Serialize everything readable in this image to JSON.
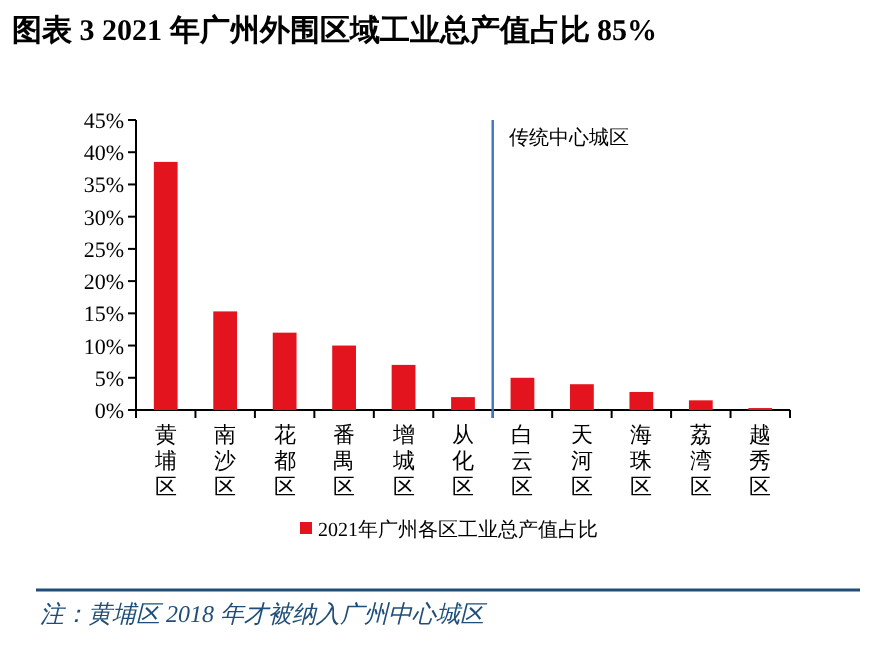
{
  "chart_data": {
    "type": "bar",
    "title": "图表 3 2021 年广州外围区域工业总产值占比 85%",
    "categories": [
      "黄埔区",
      "南沙区",
      "花都区",
      "番禺区",
      "增城区",
      "从化区",
      "白云区",
      "天河区",
      "海珠区",
      "荔湾区",
      "越秀区"
    ],
    "series": [
      {
        "name": "2021年广州各区工业总产值占比",
        "color": "#e3141e",
        "values": [
          38.5,
          15.3,
          12,
          10,
          7,
          2,
          5,
          4,
          2.8,
          1.5,
          0.3
        ]
      }
    ],
    "ylim": [
      0,
      45
    ],
    "yticks": [
      {
        "value": 0,
        "label": "0%"
      },
      {
        "value": 5,
        "label": "5%"
      },
      {
        "value": 10,
        "label": "10%"
      },
      {
        "value": 15,
        "label": "15%"
      },
      {
        "value": 20,
        "label": "20%"
      },
      {
        "value": 25,
        "label": "25%"
      },
      {
        "value": 30,
        "label": "30%"
      },
      {
        "value": 35,
        "label": "35%"
      },
      {
        "value": 40,
        "label": "40%"
      },
      {
        "value": 45,
        "label": "45%"
      }
    ],
    "ref_lines": [
      {
        "axis": "x",
        "value": "白云区",
        "label": "传统中心城区",
        "color": "#4472c4"
      }
    ],
    "legend": "bottom",
    "grid": false,
    "annotations": [
      "注：黄埔区 2018 年才被纳入广州中心城区"
    ]
  }
}
